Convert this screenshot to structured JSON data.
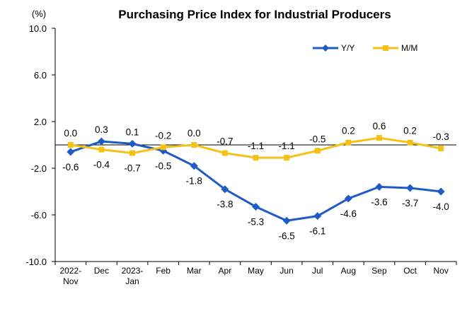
{
  "chart_data": {
    "type": "line",
    "title": "Purchasing Price Index for Industrial Producers",
    "unit_label": "(%)",
    "xlabel": "",
    "ylabel": "",
    "ylim": [
      -10.0,
      10.0
    ],
    "yticks": [
      "10.0",
      "6.0",
      "2.0",
      "-2.0",
      "-6.0",
      "-10.0"
    ],
    "ytick_values": [
      10,
      6,
      2,
      -2,
      -6,
      -10
    ],
    "categories": [
      "2022-Nov",
      "Dec",
      "2023-Jan",
      "Feb",
      "Mar",
      "Apr",
      "May",
      "Jun",
      "Jul",
      "Aug",
      "Sep",
      "Oct",
      "Nov"
    ],
    "category_lines": [
      [
        "2022-",
        "Nov"
      ],
      [
        "Dec"
      ],
      [
        "2023-",
        "Jan"
      ],
      [
        "Feb"
      ],
      [
        "Mar"
      ],
      [
        "Apr"
      ],
      [
        "May"
      ],
      [
        "Jun"
      ],
      [
        "Jul"
      ],
      [
        "Aug"
      ],
      [
        "Sep"
      ],
      [
        "Oct"
      ],
      [
        "Nov"
      ]
    ],
    "series": [
      {
        "name": "Y/Y",
        "color": "#1f5bc6",
        "marker": "diamond",
        "values": [
          -0.6,
          0.3,
          0.1,
          -0.5,
          -1.8,
          -3.8,
          -5.3,
          -6.5,
          -6.1,
          -4.6,
          -3.6,
          -3.7,
          -4.0
        ],
        "labels": [
          "-0.6",
          "0.3",
          "0.1",
          "-0.5",
          "-1.8",
          "-3.8",
          "-5.3",
          "-6.5",
          "-6.1",
          "-4.6",
          "-3.6",
          "-3.7",
          "-4.0"
        ]
      },
      {
        "name": "M/M",
        "color": "#f5c116",
        "marker": "square",
        "values": [
          0.0,
          -0.4,
          -0.7,
          -0.2,
          0.0,
          -0.7,
          -1.1,
          -1.1,
          -0.5,
          0.2,
          0.6,
          0.2,
          -0.3
        ],
        "labels": [
          "0.0",
          "-0.4",
          "-0.7",
          "-0.2",
          "0.0",
          "-0.7",
          "-1.1",
          "-1.1",
          "-0.5",
          "0.2",
          "0.6",
          "0.2",
          "-0.3"
        ]
      }
    ],
    "legend_position": "top-right",
    "grid": false
  }
}
